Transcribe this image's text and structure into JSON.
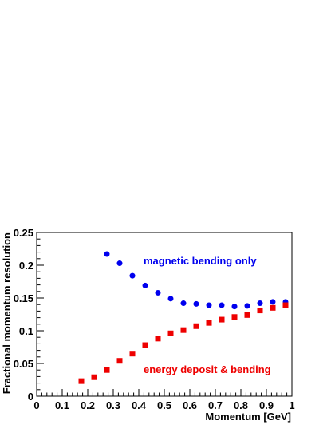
{
  "chart_data": {
    "type": "scatter",
    "xlabel": "Momentum [GeV]",
    "ylabel": "Fractional momentum resolution",
    "xlim": [
      0,
      1
    ],
    "ylim": [
      0,
      0.25
    ],
    "x_ticks": [
      0,
      0.1,
      0.2,
      0.3,
      0.4,
      0.5,
      0.6,
      0.7,
      0.8,
      0.9,
      1
    ],
    "x_tick_labels": [
      "0",
      "0.1",
      "0.2",
      "0.3",
      "0.4",
      "0.5",
      "0.6",
      "0.7",
      "0.8",
      "0.9",
      "1"
    ],
    "y_ticks": [
      0,
      0.05,
      0.1,
      0.15,
      0.2,
      0.25
    ],
    "y_tick_labels": [
      "0",
      "0.05",
      "0.1",
      "0.15",
      "0.2",
      "0.25"
    ],
    "grid": false,
    "series": [
      {
        "name": "magnetic bending only",
        "color": "#0000ee",
        "marker": "circle",
        "x": [
          0.275,
          0.325,
          0.375,
          0.425,
          0.475,
          0.525,
          0.575,
          0.625,
          0.675,
          0.725,
          0.775,
          0.825,
          0.875,
          0.925,
          0.975
        ],
        "y": [
          0.217,
          0.203,
          0.184,
          0.169,
          0.158,
          0.149,
          0.142,
          0.141,
          0.139,
          0.139,
          0.137,
          0.138,
          0.142,
          0.144,
          0.144
        ]
      },
      {
        "name": "energy deposit & bending",
        "color": "#ee0000",
        "marker": "square",
        "x": [
          0.175,
          0.225,
          0.275,
          0.325,
          0.375,
          0.425,
          0.475,
          0.525,
          0.575,
          0.625,
          0.675,
          0.725,
          0.775,
          0.825,
          0.875,
          0.925,
          0.975
        ],
        "y": [
          0.023,
          0.029,
          0.04,
          0.054,
          0.065,
          0.078,
          0.088,
          0.096,
          0.101,
          0.107,
          0.112,
          0.117,
          0.121,
          0.124,
          0.131,
          0.135,
          0.139
        ]
      }
    ]
  }
}
